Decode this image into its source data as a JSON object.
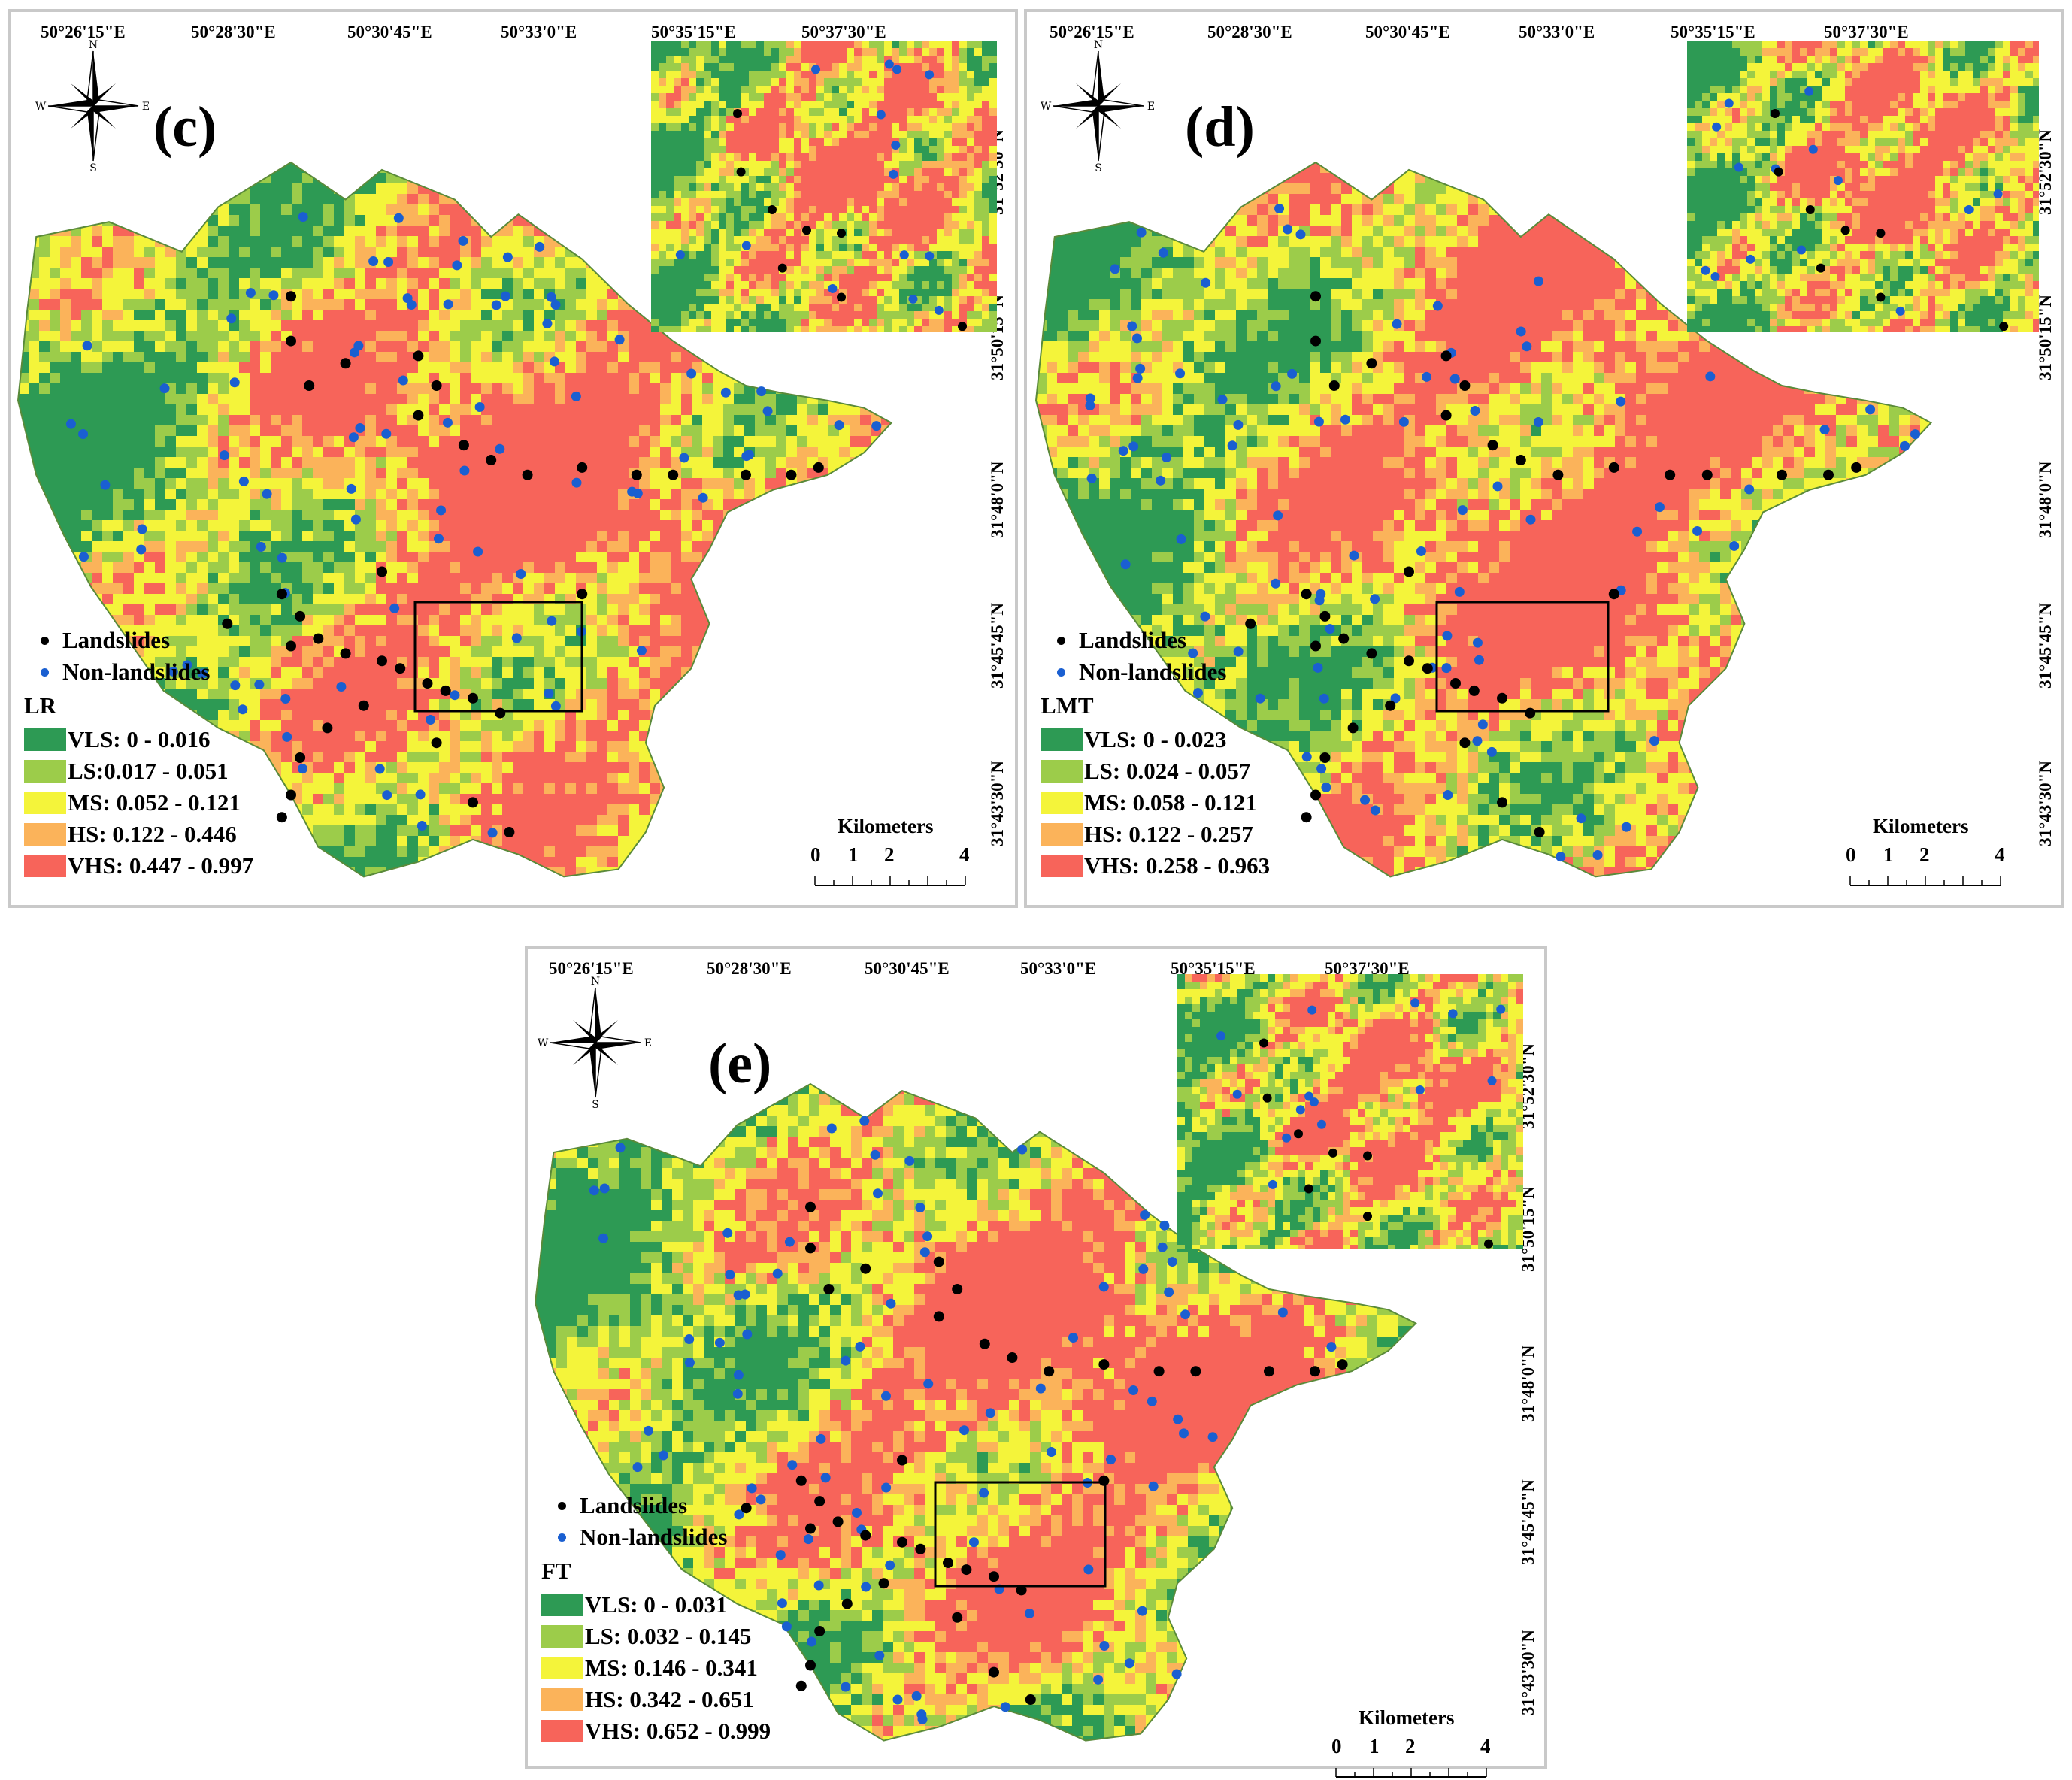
{
  "lon_labels": [
    "50°26'15\"E",
    "50°28'30\"E",
    "50°30'45\"E",
    "50°33'0\"E",
    "50°35'15\"E",
    "50°37'30\"E"
  ],
  "lat_labels": [
    "31°52'30\"N",
    "31°50'15\"N",
    "31°48'0\"N",
    "31°45'45\"N",
    "31°43'30\"N"
  ],
  "compass": {
    "n": "N",
    "s": "S",
    "e": "E",
    "w": "W"
  },
  "points_legend": {
    "landslides": "Landslides",
    "non_landslides": "Non-landslides",
    "landslide_color": "#000000",
    "non_landslide_color": "#1a5fd1"
  },
  "class_colors": {
    "VLS": "#2d9a54",
    "LS": "#9ccc4a",
    "MS": "#f4f43a",
    "HS": "#fbb35a",
    "VHS": "#f7645a"
  },
  "scale": {
    "title": "Kilometers",
    "ticks": [
      "0",
      "1",
      "2",
      "4"
    ]
  },
  "panels": [
    {
      "letter": "(c)",
      "model": "LR",
      "classes": [
        "VLS: 0 - 0.016",
        "LS:0.017 - 0.051",
        "MS: 0.052 - 0.121",
        "HS: 0.122 - 0.446",
        "VHS: 0.447 - 0.997"
      ]
    },
    {
      "letter": "(d)",
      "model": "LMT",
      "classes": [
        "VLS: 0 - 0.023",
        "LS: 0.024 - 0.057",
        "MS: 0.058 - 0.121",
        "HS: 0.122 - 0.257",
        "VHS: 0.258 - 0.963"
      ]
    },
    {
      "letter": "(e)",
      "model": "FT",
      "classes": [
        "VLS: 0 - 0.031",
        "LS: 0.032 - 0.145",
        "MS: 0.146 - 0.341",
        "HS: 0.342 - 0.651",
        "VHS: 0.652 - 0.999"
      ]
    }
  ]
}
